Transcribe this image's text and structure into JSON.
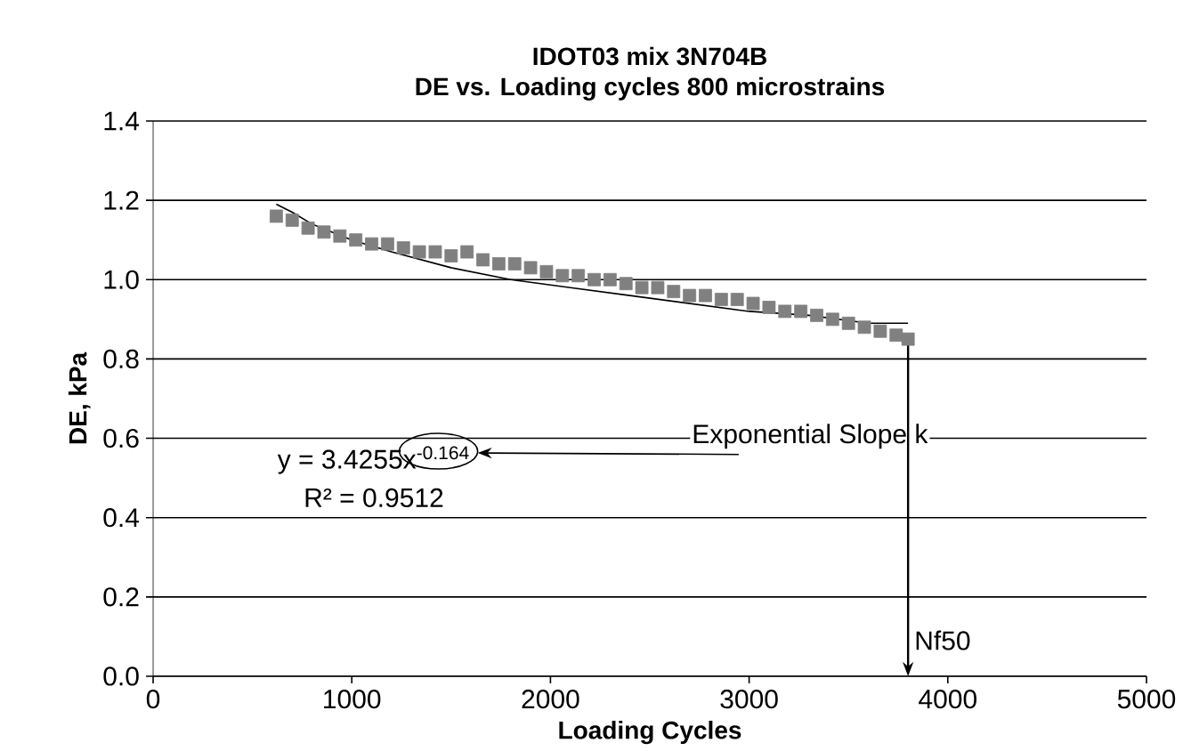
{
  "chart_data": {
    "type": "scatter",
    "title": "IDOT03 mix 3N704B",
    "subtitle": "DE vs. Loading cycles   800 microstrains",
    "xlabel": "Loading Cycles",
    "ylabel": "DE, kPa",
    "xlim": [
      0,
      5000
    ],
    "xticks": [
      0,
      1000,
      2000,
      3000,
      4000,
      5000
    ],
    "ylim": [
      0,
      1.4
    ],
    "yticks": [
      {
        "value": 0,
        "label": "0.0"
      },
      {
        "value": 0.2,
        "label": "0.2"
      },
      {
        "value": 0.4,
        "label": "0.4"
      },
      {
        "value": 0.6,
        "label": "0.6"
      },
      {
        "value": 0.8,
        "label": "0.8"
      },
      {
        "value": 1.0,
        "label": "1.0"
      },
      {
        "value": 1.2,
        "label": "1.2"
      },
      {
        "value": 1.4,
        "label": "1.4"
      }
    ],
    "grid": "y",
    "series": [
      {
        "color": "#808080",
        "marker": "square",
        "x": [
          620,
          700,
          780,
          860,
          940,
          1020,
          1100,
          1180,
          1260,
          1340,
          1420,
          1500,
          1580,
          1660,
          1740,
          1820,
          1900,
          1980,
          2060,
          2140,
          2220,
          2300,
          2380,
          2460,
          2540,
          2620,
          2700,
          2780,
          2860,
          2940,
          3020,
          3100,
          3180,
          3260,
          3340,
          3420,
          3500,
          3580,
          3660,
          3740,
          3800
        ],
        "values": [
          1.16,
          1.15,
          1.13,
          1.12,
          1.11,
          1.1,
          1.09,
          1.09,
          1.08,
          1.07,
          1.07,
          1.06,
          1.07,
          1.05,
          1.04,
          1.04,
          1.03,
          1.02,
          1.01,
          1.01,
          1.0,
          1.0,
          0.99,
          0.98,
          0.98,
          0.97,
          0.96,
          0.96,
          0.95,
          0.95,
          0.94,
          0.93,
          0.92,
          0.92,
          0.91,
          0.9,
          0.89,
          0.88,
          0.87,
          0.86,
          0.85
        ]
      },
      {
        "type": "line",
        "color": "#000000",
        "marker": "none",
        "x": [
          620,
          700,
          800,
          1000,
          1200,
          1500,
          1800,
          2100,
          2400,
          2700,
          3000,
          3300,
          3600,
          3800
        ],
        "values": [
          1.19,
          1.17,
          1.14,
          1.1,
          1.07,
          1.03,
          1.0,
          0.98,
          0.96,
          0.94,
          0.92,
          0.91,
          0.89,
          0.89
        ]
      }
    ],
    "annotations": [
      "Exponential Slope k",
      "y = 3.4255x$^{-0.164}$",
      "R² = 0.9512",
      "Nf50"
    ]
  }
}
